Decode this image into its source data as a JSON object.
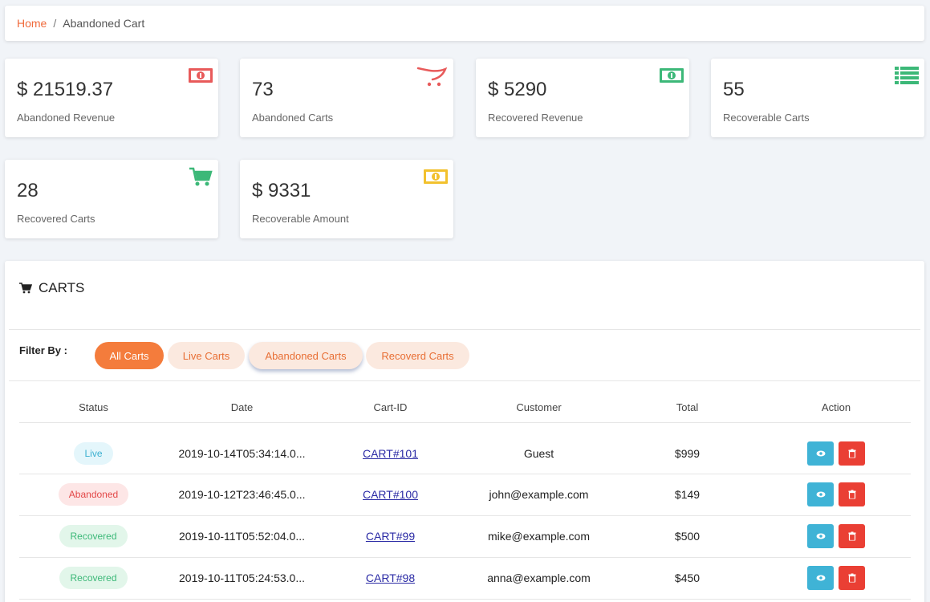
{
  "breadcrumb": {
    "home": "Home",
    "separator": "/",
    "current": "Abandoned Cart"
  },
  "stats": [
    {
      "value": "$ 21519.37",
      "label": "Abandoned Revenue",
      "icon": "money-icon",
      "color": "#e85a5a"
    },
    {
      "value": "73",
      "label": "Abandoned Carts",
      "icon": "opencart-icon",
      "color": "#e85a5a"
    },
    {
      "value": "$ 5290",
      "label": "Recovered Revenue",
      "icon": "money-icon",
      "color": "#3cb878"
    },
    {
      "value": "55",
      "label": "Recoverable Carts",
      "icon": "list-icon",
      "color": "#3cb878"
    },
    {
      "value": "28",
      "label": "Recovered Carts",
      "icon": "cart-icon",
      "color": "#3cb878"
    },
    {
      "value": "$ 9331",
      "label": "Recoverable Amount",
      "icon": "money-icon",
      "color": "#f2c12e"
    }
  ],
  "panel": {
    "title": "CARTS"
  },
  "filter": {
    "label": "Filter By :",
    "options": [
      "All Carts",
      "Live Carts",
      "Abandoned Carts",
      "Recoverd Carts"
    ],
    "selected": "All Carts"
  },
  "table": {
    "headers": [
      "Status",
      "Date",
      "Cart-ID",
      "Customer",
      "Total",
      "Action"
    ],
    "rows": [
      {
        "status": "Live",
        "date": "2019-10-14T05:34:14.0...",
        "cart_id": "CART#101",
        "customer": "Guest",
        "total": "$999"
      },
      {
        "status": "Abandoned",
        "date": "2019-10-12T23:46:45.0...",
        "cart_id": "CART#100",
        "customer": "john@example.com",
        "total": "$149"
      },
      {
        "status": "Recovered",
        "date": "2019-10-11T05:52:04.0...",
        "cart_id": "CART#99",
        "customer": "mike@example.com",
        "total": "$500"
      },
      {
        "status": "Recovered",
        "date": "2019-10-11T05:24:53.0...",
        "cart_id": "CART#98",
        "customer": "anna@example.com",
        "total": "$450"
      }
    ]
  },
  "colors": {
    "accent": "#f47c3c",
    "status_live_bg": "#e4f6fb",
    "status_live_fg": "#3bb0d0",
    "status_abandoned_bg": "#fde6e6",
    "status_abandoned_fg": "#e34848",
    "status_recovered_bg": "#e2f6ea",
    "status_recovered_fg": "#3cb878"
  }
}
